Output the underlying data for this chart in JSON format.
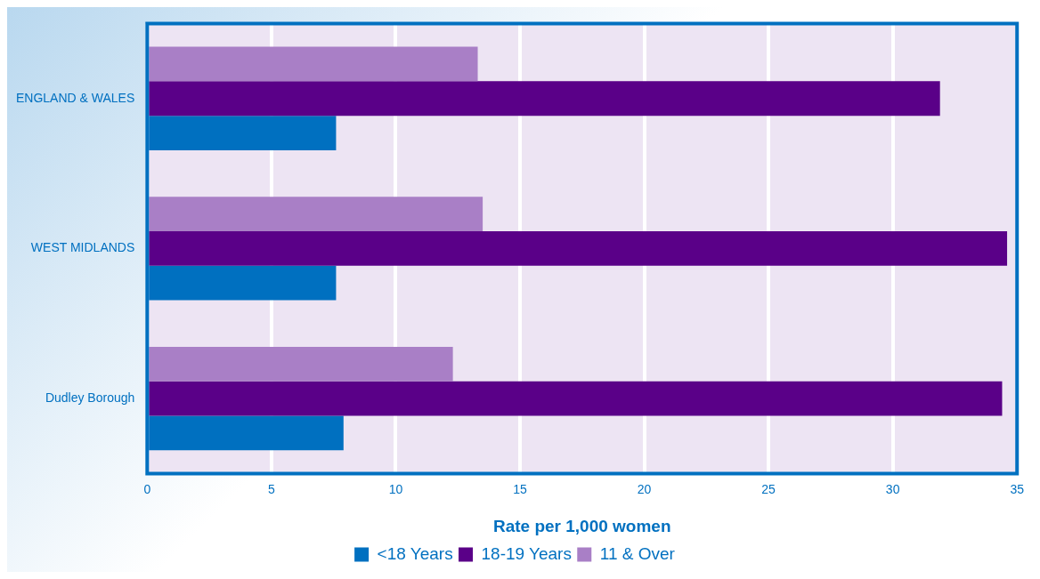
{
  "chart_data": {
    "type": "bar",
    "orientation": "horizontal",
    "xlabel": "Rate per 1,000 women",
    "categories": [
      "ENGLAND & WALES",
      "WEST MIDLANDS",
      "Dudley Borough"
    ],
    "series": [
      {
        "name": "11 & Over",
        "color": "#a97fc6",
        "values": [
          13.3,
          13.5,
          12.3
        ]
      },
      {
        "name": "18-19 Years",
        "color": "#5a0088",
        "values": [
          31.9,
          34.6,
          34.4
        ]
      },
      {
        "name": "<18 Years",
        "color": "#0070c0",
        "values": [
          7.6,
          7.6,
          7.9
        ]
      }
    ],
    "xlim": [
      0,
      35
    ],
    "xticks": [
      0,
      5,
      10,
      15,
      20,
      25,
      30,
      35
    ],
    "grid": "x",
    "legend": "bottom"
  }
}
